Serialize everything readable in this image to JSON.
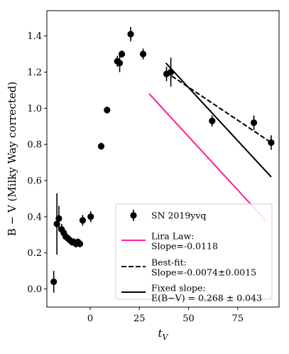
{
  "chart_data": {
    "type": "scatter",
    "xlabel": "t_V",
    "ylabel": "B − V (Milky Way corrected)",
    "xlim": [
      -22,
      96
    ],
    "ylim": [
      -0.1,
      1.54
    ],
    "xticks": [
      0,
      25,
      50,
      75
    ],
    "yticks": [
      0.0,
      0.2,
      0.4,
      0.6,
      0.8,
      1.0,
      1.2,
      1.4
    ],
    "grid": false,
    "legend_position": "lower-right",
    "series": [
      {
        "name": "SN 2019yvq",
        "kind": "errorbar",
        "color": "#000000",
        "points": [
          {
            "x": -18.5,
            "y": 0.04,
            "err": 0.06
          },
          {
            "x": -16.9,
            "y": 0.36,
            "err": 0.17
          },
          {
            "x": -15.9,
            "y": 0.39,
            "err": 0.07
          },
          {
            "x": -14.5,
            "y": 0.33,
            "err": 0.03
          },
          {
            "x": -13.4,
            "y": 0.31,
            "err": 0.02
          },
          {
            "x": -12.4,
            "y": 0.29,
            "err": 0.02
          },
          {
            "x": -11.3,
            "y": 0.28,
            "err": 0.02
          },
          {
            "x": -10.3,
            "y": 0.27,
            "err": 0.02
          },
          {
            "x": -9.2,
            "y": 0.26,
            "err": 0.02
          },
          {
            "x": -8.2,
            "y": 0.26,
            "err": 0.02
          },
          {
            "x": -7.2,
            "y": 0.25,
            "err": 0.02
          },
          {
            "x": -6.2,
            "y": 0.26,
            "err": 0.02
          },
          {
            "x": -5.2,
            "y": 0.25,
            "err": 0.02
          },
          {
            "x": -3.8,
            "y": 0.38,
            "err": 0.03
          },
          {
            "x": 0.3,
            "y": 0.4,
            "err": 0.03
          },
          {
            "x": 5.6,
            "y": 0.79,
            "err": 0.02
          },
          {
            "x": 8.6,
            "y": 0.99,
            "err": 0.02
          },
          {
            "x": 13.8,
            "y": 1.26,
            "err": 0.03
          },
          {
            "x": 15.0,
            "y": 1.25,
            "err": 0.05
          },
          {
            "x": 16.1,
            "y": 1.3,
            "err": 0.02
          },
          {
            "x": 20.6,
            "y": 1.41,
            "err": 0.04
          },
          {
            "x": 26.9,
            "y": 1.3,
            "err": 0.03
          },
          {
            "x": 38.8,
            "y": 1.19,
            "err": 0.04
          },
          {
            "x": 41.0,
            "y": 1.2,
            "err": 0.08
          },
          {
            "x": 62.0,
            "y": 0.93,
            "err": 0.03
          },
          {
            "x": 83.2,
            "y": 0.92,
            "err": 0.04
          },
          {
            "x": 92.0,
            "y": 0.81,
            "err": 0.04
          }
        ]
      },
      {
        "name": "Lira Law:\nSlope=-0.0118",
        "kind": "line",
        "color": "#ff1f9b",
        "dash": "solid",
        "points": [
          {
            "x": 30,
            "y": 1.08
          },
          {
            "x": 90,
            "y": 0.37
          }
        ]
      },
      {
        "name": "Best-fit:\nSlope=-0.0074±0.0015",
        "kind": "line",
        "color": "#000000",
        "dash": "dashed",
        "points": [
          {
            "x": 38.5,
            "y": 1.2
          },
          {
            "x": 92,
            "y": 0.81
          }
        ]
      },
      {
        "name": "Fixed slope:\nE(B−V) = 0.268 ± 0.043",
        "kind": "line",
        "color": "#000000",
        "dash": "solid",
        "points": [
          {
            "x": 38.5,
            "y": 1.25
          },
          {
            "x": 92,
            "y": 0.62
          }
        ]
      }
    ]
  }
}
